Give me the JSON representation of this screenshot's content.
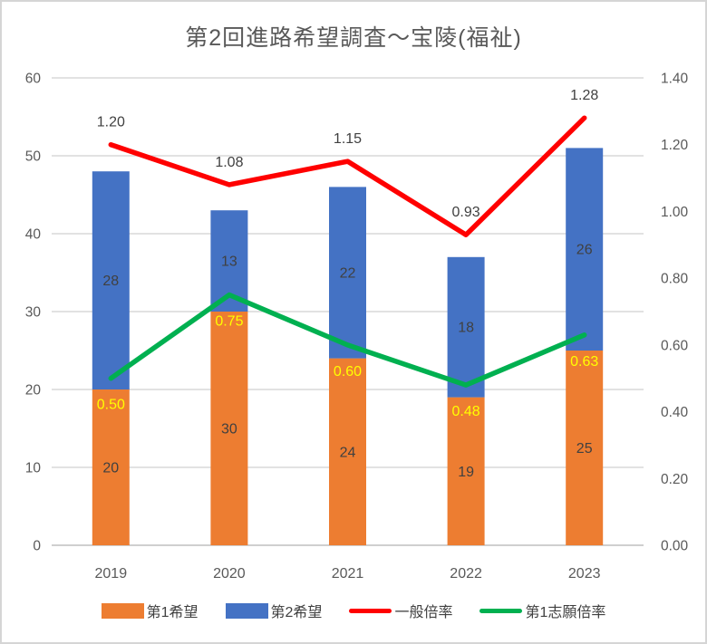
{
  "chart_data": {
    "type": "combo-stacked-bar-line",
    "title": "第2回進路希望調査～宝陵(福祉)",
    "categories": [
      "2019",
      "2020",
      "2021",
      "2022",
      "2023"
    ],
    "bar_series": [
      {
        "name": "第1希望",
        "color": "#ED7D31",
        "axis": "left",
        "values": [
          20,
          30,
          24,
          19,
          25
        ],
        "labels": [
          "20",
          "30",
          "24",
          "19",
          "25"
        ],
        "label_color": "#404040"
      },
      {
        "name": "第2希望",
        "color": "#4472C4",
        "axis": "left",
        "values": [
          28,
          13,
          22,
          18,
          26
        ],
        "labels": [
          "28",
          "13",
          "22",
          "18",
          "26"
        ],
        "label_color": "#404040"
      }
    ],
    "line_series": [
      {
        "name": "一般倍率",
        "color": "#FF0000",
        "axis": "right",
        "values": [
          1.2,
          1.08,
          1.15,
          0.93,
          1.28
        ],
        "labels": [
          "1.20",
          "1.08",
          "1.15",
          "0.93",
          "1.28"
        ],
        "label_color": "#404040",
        "label_position": "above"
      },
      {
        "name": "第1志願倍率",
        "color": "#00B050",
        "axis": "right",
        "values": [
          0.5,
          0.75,
          0.6,
          0.48,
          0.63
        ],
        "labels": [
          "0.50",
          "0.75",
          "0.60",
          "0.48",
          "0.63"
        ],
        "label_color": "#FFFF00",
        "label_position": "below"
      }
    ],
    "left_axis": {
      "min": 0,
      "max": 60,
      "step": 10,
      "ticks": [
        "0",
        "10",
        "20",
        "30",
        "40",
        "50",
        "60"
      ],
      "text_color": "#595959"
    },
    "right_axis": {
      "min": 0.0,
      "max": 1.4,
      "step": 0.2,
      "ticks": [
        "0.00",
        "0.20",
        "0.40",
        "0.60",
        "0.80",
        "1.00",
        "1.20",
        "1.40"
      ],
      "text_color": "#595959"
    },
    "x_axis": {
      "text_color": "#595959"
    },
    "grid": true,
    "gridline_color": "#D9D9D9",
    "baseline_color": "#BFBFBF",
    "legend_position": "bottom"
  }
}
